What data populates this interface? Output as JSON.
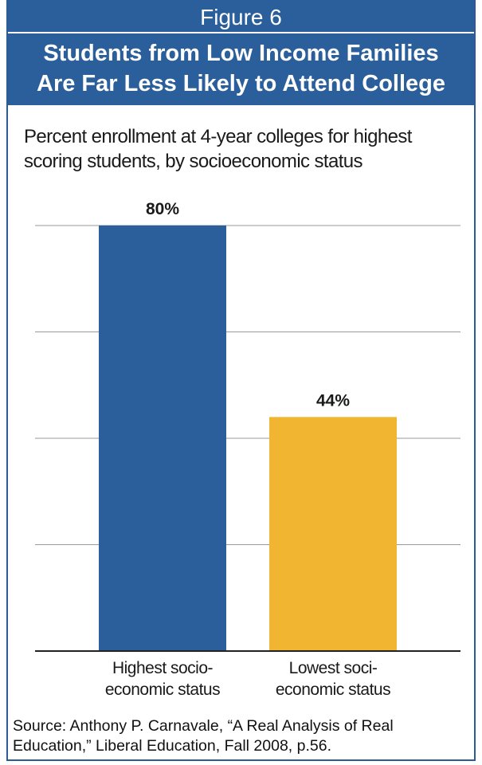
{
  "figure_label": "Figure 6",
  "title_lines": [
    "Students from Low Income Families",
    "Are Far Less Likely to Attend College"
  ],
  "subtitle_lines": [
    "Percent enrollment at 4-year colleges for highest",
    "scoring students, by socioeconomic status"
  ],
  "source": "Source: Anthony P. Carnavale, “A Real Analysis of Real Education,” Liberal Education, Fall 2008, p.56.",
  "colors": {
    "header": "#2a5f9b",
    "bar_high": "#2a5f9b",
    "bar_low": "#f2b531",
    "grid": "#9a9a9a",
    "axis": "#222222"
  },
  "chart_data": {
    "type": "bar",
    "categories": [
      "Highest socio-\neconomic status",
      "Lowest soci-\neconomic status"
    ],
    "values": [
      80,
      44
    ],
    "data_labels": [
      "80%",
      "44%"
    ],
    "ylim": [
      0,
      80
    ],
    "grid": true,
    "gridline_values": [
      20,
      40,
      60,
      80
    ]
  }
}
